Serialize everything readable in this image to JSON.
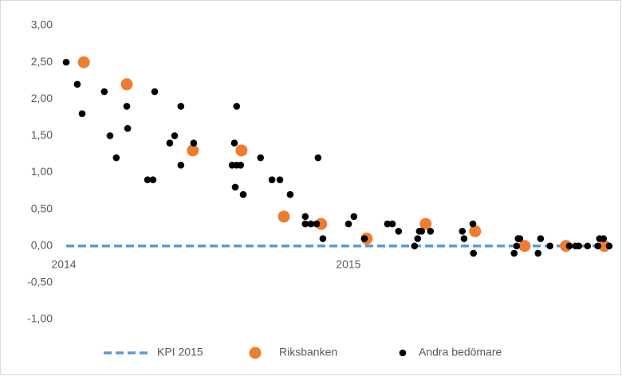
{
  "chart_data": {
    "type": "scatter",
    "xlim": [
      2014,
      2015.925
    ],
    "xticks": [
      2014,
      2015
    ],
    "ylim": [
      -1,
      3
    ],
    "yticks": [
      {
        "value": 3,
        "label": "3,00"
      },
      {
        "value": 2.5,
        "label": "2,50"
      },
      {
        "value": 2,
        "label": "2,00"
      },
      {
        "value": 1.5,
        "label": "1,50"
      },
      {
        "value": 1,
        "label": "1,00"
      },
      {
        "value": 0.5,
        "label": "0,50"
      },
      {
        "value": 0,
        "label": "0,00"
      },
      {
        "value": -0.5,
        "label": "-0,50"
      },
      {
        "value": -1,
        "label": "-1,00"
      }
    ],
    "legend": "bottom",
    "series": [
      {
        "name": "KPI 2015",
        "kind": "line",
        "color": "#5b9bd5",
        "x": [
          2014,
          2015.9
        ],
        "values": [
          0,
          0
        ]
      },
      {
        "name": "Riksbanken",
        "kind": "point",
        "color": "#ed7d31",
        "x": [
          2014.062,
          2014.213,
          2014.445,
          2014.616,
          2014.765,
          2014.896,
          2015.056,
          2015.263,
          2015.437,
          2015.611,
          2015.756,
          2015.891
        ],
        "values": [
          2.5,
          2.2,
          1.3,
          1.3,
          0.4,
          0.3,
          0.1,
          0.3,
          0.2,
          0,
          0,
          0
        ]
      },
      {
        "name": "Andra bedömare",
        "kind": "point",
        "color": "#000000",
        "x": [
          2014,
          2014.039,
          2014.056,
          2014.134,
          2014.154,
          2014.176,
          2014.213,
          2014.216,
          2014.286,
          2014.305,
          2014.311,
          2014.364,
          2014.381,
          2014.403,
          2014.403,
          2014.448,
          2014.583,
          2014.591,
          2014.594,
          2014.599,
          2014.599,
          2014.613,
          2014.622,
          2014.683,
          2014.723,
          2014.751,
          2014.787,
          2014.84,
          2014.84,
          2014.86,
          2014.88,
          2014.885,
          2014.902,
          2014.992,
          2015.011,
          2015.048,
          2015.129,
          2015.146,
          2015.168,
          2015.224,
          2015.235,
          2015.241,
          2015.249,
          2015.28,
          2015.392,
          2015.398,
          2015.429,
          2015.431,
          2015.574,
          2015.583,
          2015.588,
          2015.594,
          2015.658,
          2015.667,
          2015.7,
          2015.768,
          2015.79,
          2015.801,
          2015.832,
          2015.868,
          2015.874,
          2015.888,
          2015.908
        ],
        "values": [
          2.5,
          2.2,
          1.8,
          2.1,
          1.5,
          1.2,
          1.9,
          1.6,
          0.9,
          0.9,
          2.1,
          1.4,
          1.5,
          1.9,
          1.1,
          1.4,
          1.1,
          1.4,
          0.8,
          1.9,
          1.1,
          1.1,
          0.7,
          1.2,
          0.9,
          0.9,
          0.7,
          0.4,
          0.3,
          0.3,
          0.3,
          1.2,
          0.1,
          0.3,
          0.4,
          0.1,
          0.3,
          0.3,
          0.2,
          0,
          0.1,
          0.2,
          0.2,
          0.2,
          0.2,
          0.1,
          0.3,
          -0.1,
          -0.1,
          0,
          0.1,
          0.1,
          -0.1,
          0.1,
          0,
          0,
          0,
          0,
          0,
          0,
          0.1,
          0.1,
          0
        ]
      }
    ]
  }
}
